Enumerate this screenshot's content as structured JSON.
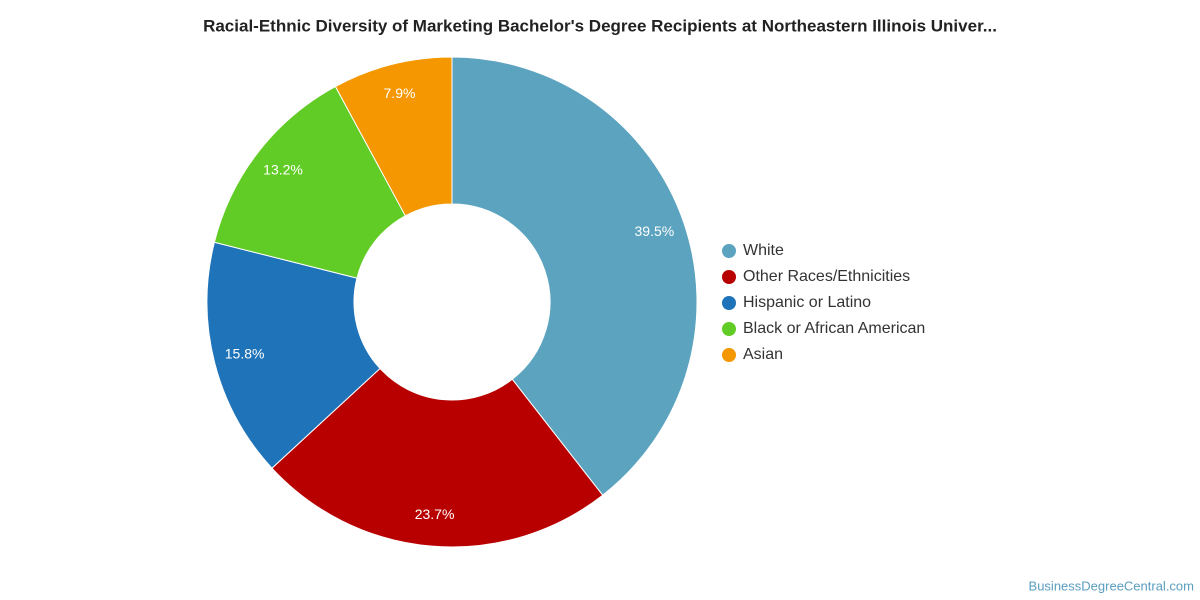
{
  "chart_data": {
    "type": "donut",
    "title": "Racial-Ethnic Diversity of Marketing Bachelor's Degree Recipients at Northeastern Illinois Univer...",
    "categories": [
      "White",
      "Other Races/Ethnicities",
      "Hispanic or Latino",
      "Black or African American",
      "Asian"
    ],
    "values": [
      39.5,
      23.7,
      15.8,
      13.2,
      7.9
    ],
    "value_labels": [
      "39.5%",
      "23.7%",
      "15.8%",
      "13.2%",
      "7.9%"
    ],
    "colors": [
      "#5ba3bf",
      "#b80000",
      "#1f73b9",
      "#62cc26",
      "#f59700"
    ],
    "legend": "right",
    "credit": "BusinessDegreeCentral.com"
  }
}
